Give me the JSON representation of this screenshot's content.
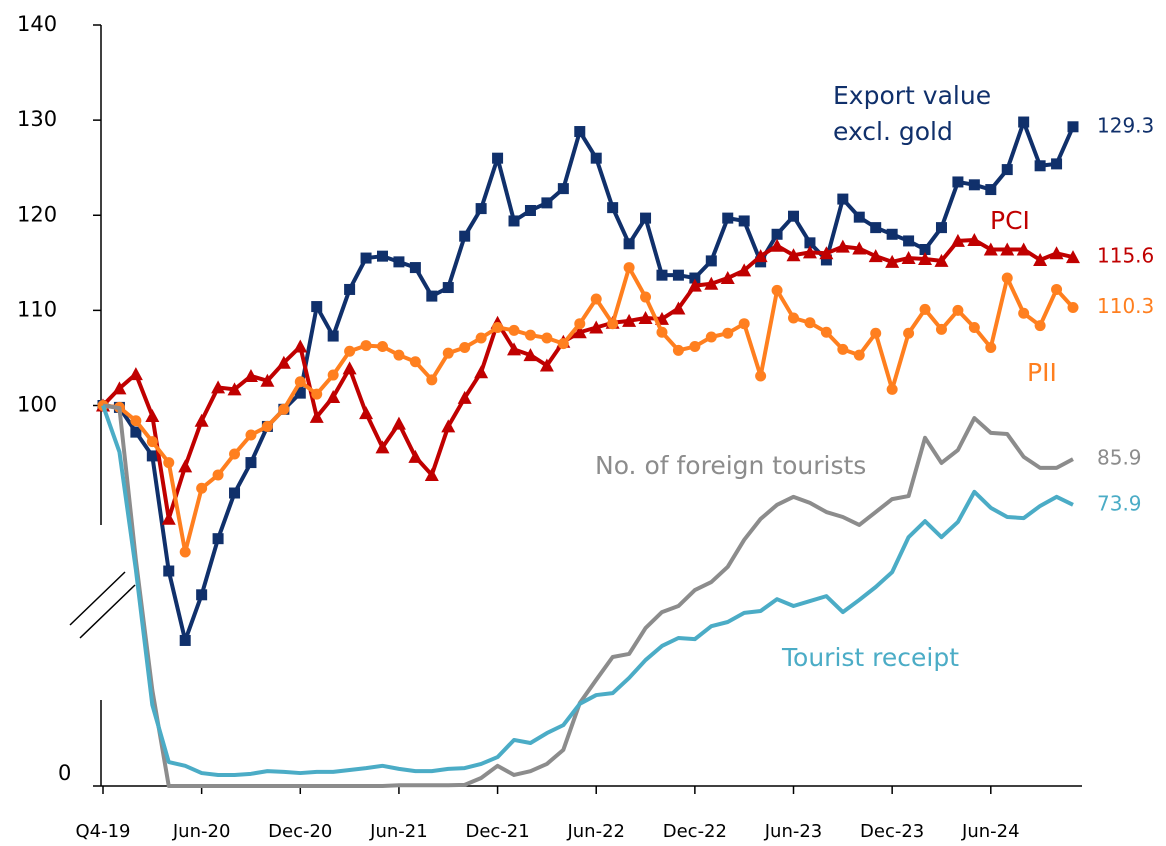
{
  "chart_data": {
    "type": "line",
    "categories": [
      "Q4-19",
      null,
      null,
      null,
      null,
      null,
      "Jun-20",
      null,
      null,
      null,
      null,
      null,
      "Dec-20",
      null,
      null,
      null,
      null,
      null,
      "Jun-21",
      null,
      null,
      null,
      null,
      null,
      "Dec-21",
      null,
      null,
      null,
      null,
      null,
      "Jun-22",
      null,
      null,
      null,
      null,
      null,
      "Dec-22",
      null,
      null,
      null,
      null,
      null,
      "Jun-23",
      null,
      null,
      null,
      null,
      null,
      "Dec-23",
      null,
      null,
      null,
      null,
      null,
      "Jun-24",
      null,
      null,
      null,
      null,
      null
    ],
    "ylim": [
      60,
      140
    ],
    "yticks": [
      100,
      110,
      120,
      130,
      140
    ],
    "y2lim": [
      0,
      200
    ],
    "y2ticks": [
      0
    ],
    "axis_break": true,
    "series": [
      {
        "name": "Export value excl. gold",
        "color": "#10306b",
        "marker": "square",
        "values": [
          100,
          99.8,
          97.2,
          94.7,
          82.6,
          75.3,
          80.1,
          86.0,
          90.8,
          94.0,
          97.8,
          99.6,
          101.3,
          110.4,
          107.3,
          112.2,
          115.5,
          115.7,
          115.1,
          114.5,
          111.5,
          112.4,
          117.8,
          120.7,
          126.0,
          119.4,
          120.5,
          121.3,
          122.8,
          128.8,
          126.0,
          120.8,
          117.0,
          119.7,
          113.7,
          113.7,
          113.4,
          115.2,
          119.7,
          119.4,
          115.1,
          118.0,
          119.9,
          117.1,
          115.3,
          121.7,
          119.8,
          118.7,
          118.0,
          117.3,
          116.4,
          118.7,
          123.5,
          123.2,
          122.7,
          124.8,
          129.8,
          125.2,
          125.4,
          129.3
        ]
      },
      {
        "name": "PCI",
        "color": "#c00000",
        "marker": "triangle",
        "values": [
          100,
          101.8,
          103.3,
          98.9,
          88.1,
          93.6,
          98.4,
          101.9,
          101.7,
          103.1,
          102.6,
          104.5,
          106.2,
          98.8,
          100.9,
          103.9,
          99.2,
          95.6,
          98.1,
          94.6,
          92.7,
          97.8,
          100.8,
          103.5,
          108.7,
          105.9,
          105.3,
          104.2,
          106.7,
          107.7,
          108.2,
          108.7,
          108.9,
          109.2,
          109.1,
          110.2,
          112.6,
          112.8,
          113.4,
          114.2,
          115.7,
          116.8,
          115.8,
          116.1,
          116.0,
          116.7,
          116.5,
          115.7,
          115.1,
          115.5,
          115.4,
          115.2,
          117.3,
          117.4,
          116.4,
          116.4,
          116.4,
          115.3,
          116.0,
          115.6
        ]
      },
      {
        "name": "PII",
        "color": "#ff7f1f",
        "marker": "circle",
        "values": [
          100,
          99.8,
          98.4,
          96.2,
          94.0,
          84.6,
          91.3,
          92.7,
          94.9,
          96.9,
          97.8,
          99.6,
          102.5,
          101.2,
          103.2,
          105.7,
          106.3,
          106.2,
          105.3,
          104.6,
          102.7,
          105.5,
          106.1,
          107.1,
          108.2,
          107.9,
          107.4,
          107.1,
          106.5,
          108.6,
          111.2,
          108.6,
          114.5,
          111.4,
          107.7,
          105.8,
          106.2,
          107.2,
          107.6,
          108.6,
          103.1,
          112.1,
          109.2,
          108.7,
          107.7,
          105.9,
          105.3,
          107.6,
          101.7,
          107.6,
          110.1,
          108.0,
          110.0,
          108.2,
          106.1,
          113.4,
          109.7,
          108.4,
          112.2,
          110.3
        ]
      },
      {
        "name": "No. of foreign tourists",
        "color": "#8c8c8c",
        "axis": "y2",
        "values": [
          100,
          99.3,
          59.4,
          25.2,
          0,
          0,
          0,
          0,
          0,
          0,
          0,
          0,
          0,
          0,
          0,
          0,
          0,
          0,
          0.2,
          0.2,
          0.2,
          0.2,
          0.3,
          2.1,
          5.3,
          2.9,
          3.9,
          5.8,
          9.5,
          21.8,
          27.9,
          33.9,
          34.7,
          41.5,
          45.7,
          47.3,
          51.5,
          53.6,
          57.6,
          64.7,
          70.2,
          73.9,
          76.0,
          74.4,
          72.0,
          70.7,
          68.6,
          72.0,
          75.4,
          76.2,
          91.5,
          84.9,
          88.3,
          96.7,
          92.8,
          92.5,
          86.5,
          83.6,
          83.6,
          85.9
        ]
      },
      {
        "name": "Tourist receipt",
        "color": "#4bacc6",
        "axis": "y2",
        "values": [
          100,
          87.8,
          56.8,
          21.3,
          6.3,
          5.3,
          3.4,
          2.9,
          2.9,
          3.2,
          3.9,
          3.7,
          3.4,
          3.7,
          3.7,
          4.2,
          4.7,
          5.3,
          4.5,
          3.9,
          3.9,
          4.5,
          4.7,
          5.8,
          7.6,
          12.1,
          11.3,
          13.9,
          16.0,
          21.6,
          23.9,
          24.4,
          28.4,
          33.1,
          36.8,
          38.9,
          38.6,
          42.0,
          43.1,
          45.5,
          46.0,
          49.1,
          47.3,
          48.6,
          49.9,
          45.7,
          48.9,
          52.3,
          56.2,
          65.4,
          69.6,
          65.4,
          69.4,
          77.3,
          73.1,
          70.7,
          70.4,
          73.6,
          76.0,
          73.9
        ]
      }
    ]
  }
}
